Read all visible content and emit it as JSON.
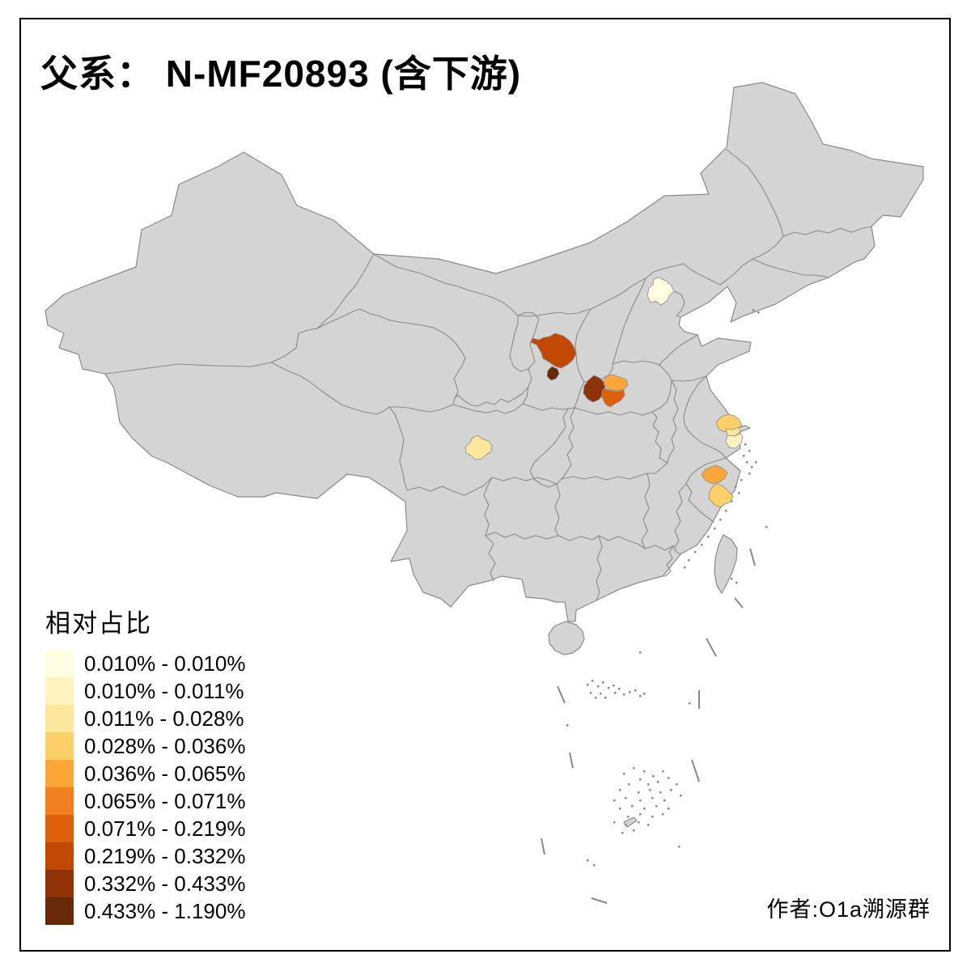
{
  "title": "父系： N-MF20893 (含下游)",
  "attribution": "作者:O1a溯源群",
  "legend": {
    "title": "相对占比",
    "classes": [
      {
        "label": "0.010% - 0.010%",
        "color": "#FFFEE0"
      },
      {
        "label": "0.010% - 0.011%",
        "color": "#FEF3BE"
      },
      {
        "label": "0.011% - 0.028%",
        "color": "#FDE79C"
      },
      {
        "label": "0.028% - 0.036%",
        "color": "#FDCF69"
      },
      {
        "label": "0.036% - 0.065%",
        "color": "#FCA637"
      },
      {
        "label": "0.065% - 0.071%",
        "color": "#F3801E"
      },
      {
        "label": "0.071% - 0.219%",
        "color": "#DF600B"
      },
      {
        "label": "0.219% - 0.332%",
        "color": "#C24903"
      },
      {
        "label": "0.332% - 0.433%",
        "color": "#8F3207"
      },
      {
        "label": "0.433% - 1.190%",
        "color": "#692807"
      }
    ]
  },
  "map": {
    "land_color": "#D4D4D4",
    "border_color": "#8A8A8A",
    "sea_color": "#FFFFFF",
    "frame_color": "#000000",
    "regions": {
      "beijing": {
        "class": 0,
        "range": "0.010% - 0.010%"
      },
      "shanghai": {
        "class": 1,
        "range": "0.010% - 0.011%"
      },
      "jiangsu-wedge": {
        "class": 2,
        "range": "0.011% - 0.028%"
      },
      "chengdu": {
        "class": 2,
        "range": "0.011% - 0.028%"
      },
      "suzhou": {
        "class": 3,
        "range": "0.028% - 0.036%"
      },
      "zhejiang-south": {
        "class": 3,
        "range": "0.028% - 0.036%"
      },
      "zhejiang-central": {
        "class": 4,
        "range": "0.036% - 0.065%"
      },
      "henan-north": {
        "class": 4,
        "range": "0.036% - 0.065%"
      },
      "henan-central": {
        "class": 6,
        "range": "0.071% - 0.219%"
      },
      "shaanxi-north": {
        "class": 7,
        "range": "0.219% - 0.332%"
      },
      "henan-west": {
        "class": 8,
        "range": "0.332% - 0.433%"
      },
      "shaanxi-spot": {
        "class": 9,
        "range": "0.433% - 1.190%"
      }
    }
  },
  "chart_data": {
    "type": "choropleth_map",
    "title": "父系： N-MF20893 (含下游)",
    "legend_title": "相对占比",
    "legend_position": "bottom-left",
    "classes": [
      "0.010% - 0.010%",
      "0.010% - 0.011%",
      "0.011% - 0.028%",
      "0.028% - 0.036%",
      "0.036% - 0.065%",
      "0.065% - 0.071%",
      "0.071% - 0.219%",
      "0.219% - 0.332%",
      "0.332% - 0.433%",
      "0.433% - 1.190%"
    ],
    "regions": [
      {
        "name": "beijing",
        "value_range": "0.010% - 0.010%"
      },
      {
        "name": "shanghai",
        "value_range": "0.010% - 0.011%"
      },
      {
        "name": "jiangsu-wedge",
        "value_range": "0.011% - 0.028%"
      },
      {
        "name": "chengdu",
        "value_range": "0.011% - 0.028%"
      },
      {
        "name": "suzhou",
        "value_range": "0.028% - 0.036%"
      },
      {
        "name": "zhejiang-south",
        "value_range": "0.028% - 0.036%"
      },
      {
        "name": "zhejiang-central",
        "value_range": "0.036% - 0.065%"
      },
      {
        "name": "henan-north",
        "value_range": "0.036% - 0.065%"
      },
      {
        "name": "henan-central",
        "value_range": "0.071% - 0.219%"
      },
      {
        "name": "shaanxi-north",
        "value_range": "0.219% - 0.332%"
      },
      {
        "name": "henan-west",
        "value_range": "0.332% - 0.433%"
      },
      {
        "name": "shaanxi-spot",
        "value_range": "0.433% - 1.190%"
      }
    ]
  }
}
